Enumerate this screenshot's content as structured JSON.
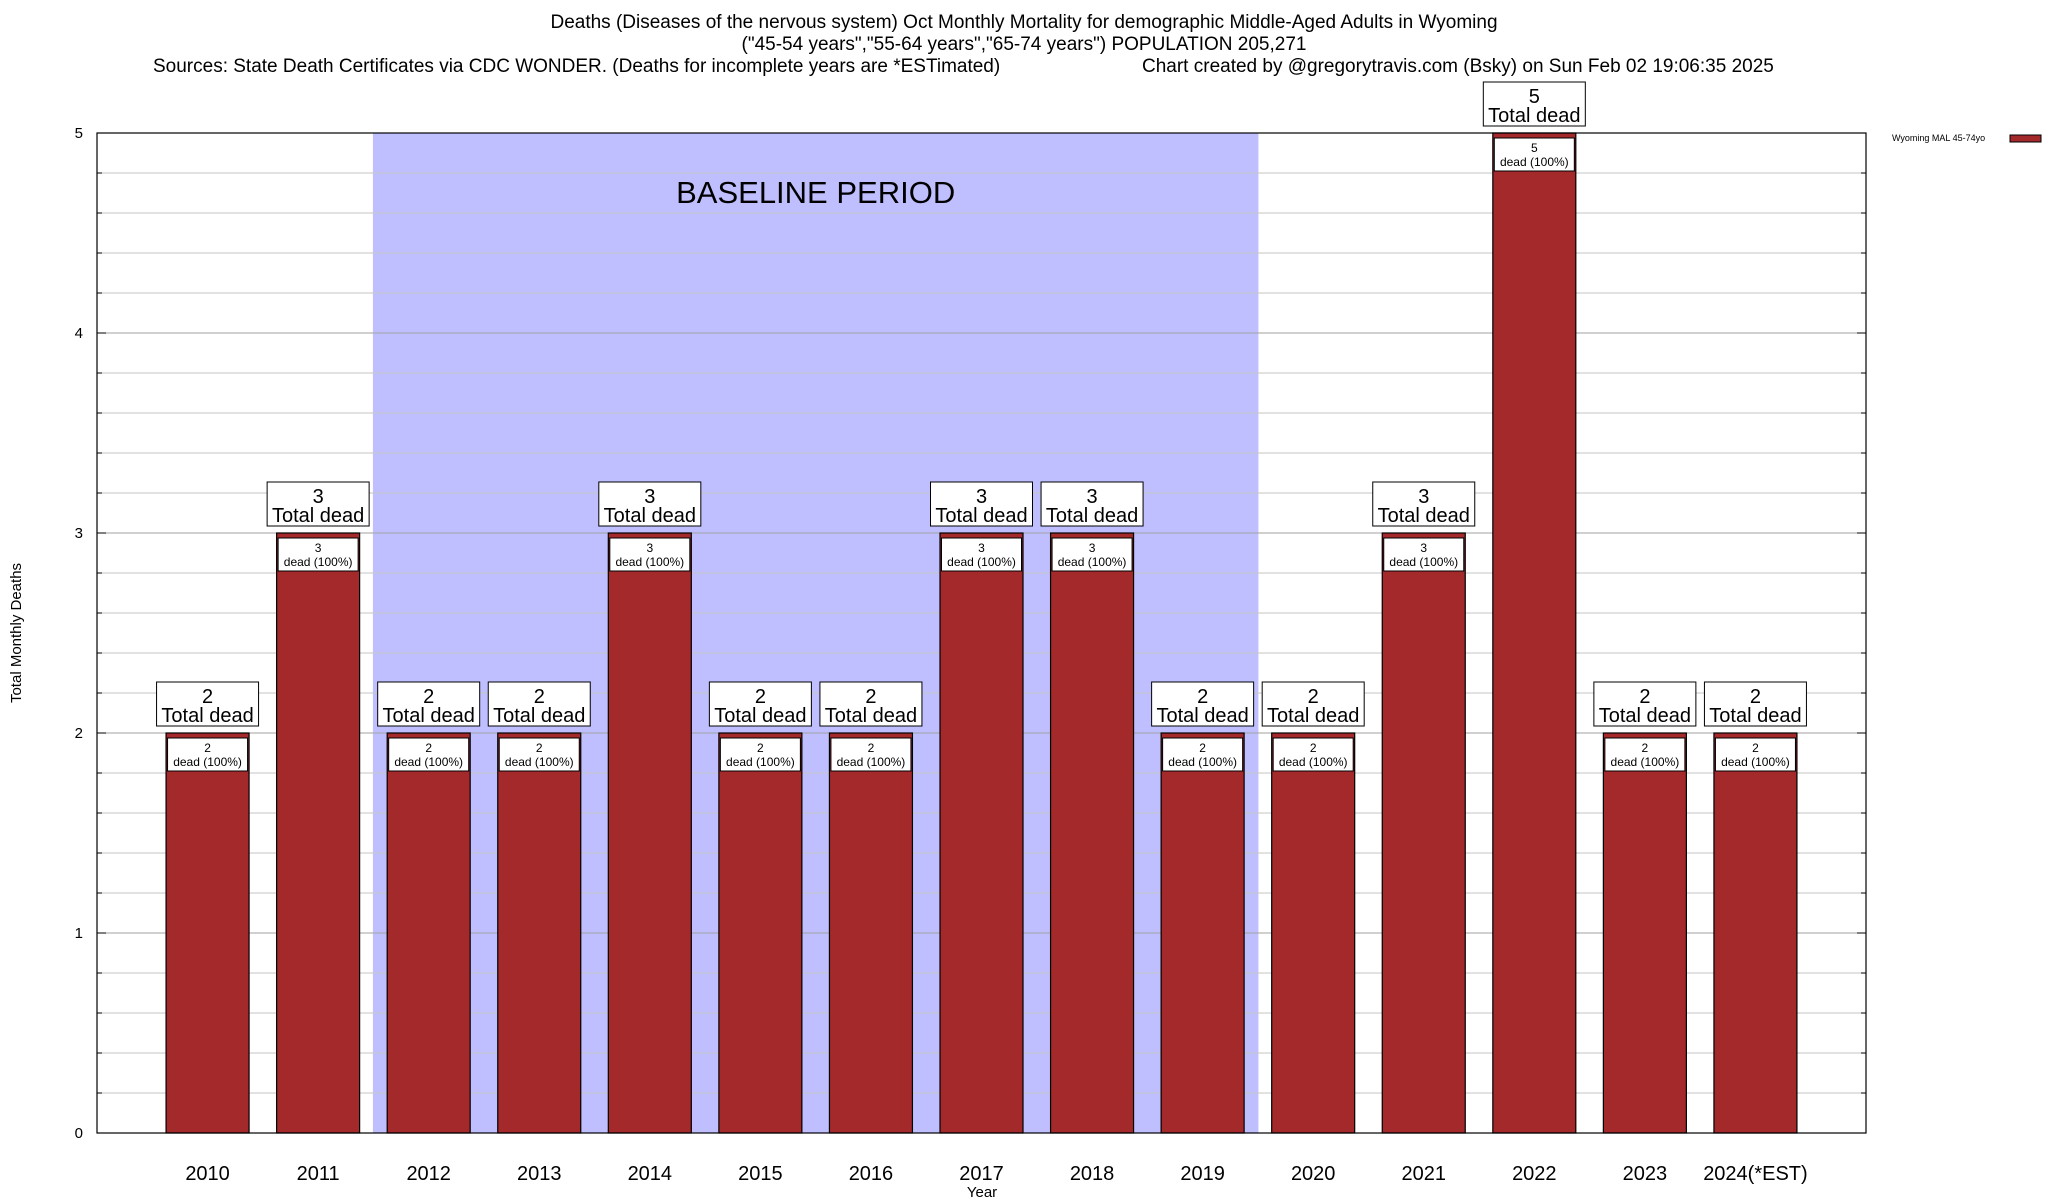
{
  "header": {
    "title": "Deaths (Diseases of the nervous system) Oct Monthly Mortality for demographic Middle-Aged Adults in Wyoming",
    "subtitle": "(\"45-54 years\",\"55-64 years\",\"65-74 years\") POPULATION 205,271",
    "sources": "Sources: State Death Certificates via CDC WONDER. (Deaths for incomplete years are *ESTimated)",
    "credit": "Chart created by @gregorytravis.com (Bsky) on Sun Feb 02 19:06:35 2025"
  },
  "chart_data": {
    "type": "bar",
    "categories": [
      "2010",
      "2011",
      "2012",
      "2013",
      "2014",
      "2015",
      "2016",
      "2017",
      "2018",
      "2019",
      "2020",
      "2021",
      "2022",
      "2023",
      "2024(*EST)"
    ],
    "series": [
      {
        "name": "Wyoming MAL 45-74yo",
        "values": [
          2,
          3,
          2,
          2,
          3,
          2,
          2,
          3,
          3,
          2,
          2,
          3,
          5,
          2,
          2
        ],
        "color": "#a3292b"
      }
    ],
    "xlabel": "Year",
    "ylabel": "Total Monthly Deaths",
    "ylim": [
      0,
      5
    ],
    "yticks": [
      0,
      1,
      2,
      3,
      4,
      5
    ],
    "minor_step": 0.2,
    "grid": true,
    "legend_position": "top-right",
    "baseline": {
      "label": "BASELINE PERIOD",
      "from": "2012",
      "to": "2019",
      "color": "#bfbfff"
    },
    "top_label_suffix": "Total dead",
    "inner_label_suffix": "dead (100%)"
  }
}
